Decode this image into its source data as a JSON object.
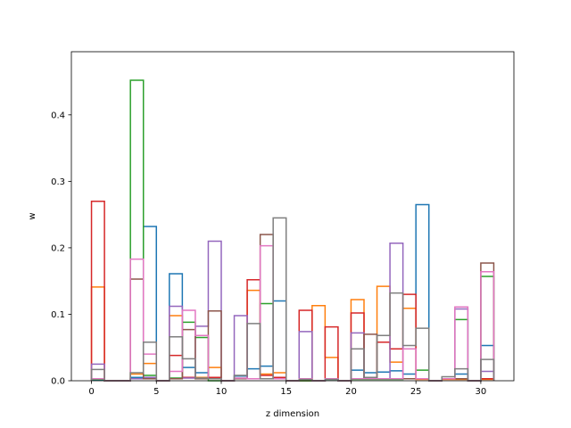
{
  "chart_data": {
    "type": "bar",
    "style": "step-histogram",
    "xlabel": "z dimension",
    "ylabel": "w",
    "xlim": [
      -1.55,
      32.55
    ],
    "ylim": [
      0,
      0.495
    ],
    "x_ticks": [
      0,
      5,
      10,
      15,
      20,
      25,
      30
    ],
    "y_ticks": [
      0.0,
      0.1,
      0.2,
      0.3,
      0.4
    ],
    "grid": false,
    "legend": "none",
    "colors": [
      "#1f77b4",
      "#ff7f0e",
      "#2ca02c",
      "#d62728",
      "#9467bd",
      "#8c564b",
      "#e377c2",
      "#7f7f7f"
    ],
    "bins": [
      0,
      1,
      2,
      3,
      4,
      5,
      6,
      7,
      8,
      9,
      10,
      11,
      12,
      13,
      14,
      15,
      16,
      17,
      18,
      19,
      20,
      21,
      22,
      23,
      24,
      25,
      26,
      27,
      28,
      29,
      30,
      31
    ],
    "series": [
      {
        "values": [
          0.001,
          0,
          0,
          0.005,
          0.232,
          0,
          0.161,
          0.02,
          0.012,
          0.003,
          0,
          0.007,
          0.018,
          0.022,
          0.12,
          0,
          0,
          0,
          0.002,
          0,
          0.016,
          0.012,
          0.013,
          0.015,
          0.01,
          0.265,
          0,
          0.003,
          0.01,
          0,
          0.053,
          0
        ]
      },
      {
        "values": [
          0.141,
          0,
          0,
          0.01,
          0.026,
          0,
          0.098,
          0.005,
          0.005,
          0.02,
          0,
          0.003,
          0.136,
          0.01,
          0.012,
          0,
          0,
          0.113,
          0.035,
          0,
          0.122,
          0.003,
          0.142,
          0.028,
          0.109,
          0.002,
          0,
          0.002,
          0.002,
          0,
          0.002,
          0
        ]
      },
      {
        "values": [
          0.002,
          0,
          0,
          0.452,
          0.008,
          0,
          0.004,
          0.088,
          0.065,
          0,
          0,
          0.003,
          0.003,
          0.116,
          0.004,
          0,
          0,
          0,
          0.002,
          0,
          0.002,
          0.002,
          0.002,
          0.002,
          0.003,
          0.016,
          0,
          0.003,
          0.092,
          0,
          0.157,
          0
        ]
      },
      {
        "values": [
          0.27,
          0,
          0,
          0.003,
          0.003,
          0,
          0.038,
          0.005,
          0.003,
          0.005,
          0,
          0.003,
          0.152,
          0.008,
          0.005,
          0,
          0.106,
          0,
          0.081,
          0,
          0.102,
          0.003,
          0.058,
          0.048,
          0.13,
          0.003,
          0,
          0.003,
          0.003,
          0,
          0.003,
          0
        ]
      },
      {
        "values": [
          0.025,
          0,
          0,
          0.003,
          0.005,
          0,
          0.112,
          0.004,
          0.082,
          0.21,
          0,
          0.098,
          0.003,
          0.003,
          0.003,
          0,
          0.074,
          0,
          0.003,
          0,
          0.072,
          0.003,
          0.003,
          0.207,
          0.003,
          0.003,
          0,
          0.003,
          0.108,
          0,
          0.014,
          0
        ]
      },
      {
        "values": [
          0.003,
          0,
          0,
          0.153,
          0.003,
          0,
          0.003,
          0.077,
          0.003,
          0.105,
          0,
          0.003,
          0.003,
          0.22,
          0.003,
          0,
          0.003,
          0,
          0.003,
          0,
          0.003,
          0.07,
          0.003,
          0.003,
          0.003,
          0.003,
          0,
          0.003,
          0.003,
          0,
          0.177,
          0
        ]
      },
      {
        "values": [
          0.003,
          0,
          0,
          0.183,
          0.04,
          0,
          0.014,
          0.106,
          0.068,
          0.003,
          0,
          0.004,
          0.003,
          0.203,
          0.003,
          0,
          0.003,
          0,
          0.003,
          0,
          0.003,
          0.003,
          0.003,
          0.003,
          0.048,
          0.003,
          0,
          0.003,
          0.111,
          0,
          0.164,
          0
        ]
      },
      {
        "values": [
          0.017,
          0,
          0,
          0.012,
          0.058,
          0,
          0.066,
          0.033,
          0.004,
          0.003,
          0,
          0.008,
          0.086,
          0.003,
          0.245,
          0,
          0.002,
          0,
          0.002,
          0,
          0.048,
          0.005,
          0.068,
          0.132,
          0.053,
          0.079,
          0,
          0.006,
          0.018,
          0,
          0.032,
          0
        ]
      }
    ]
  }
}
